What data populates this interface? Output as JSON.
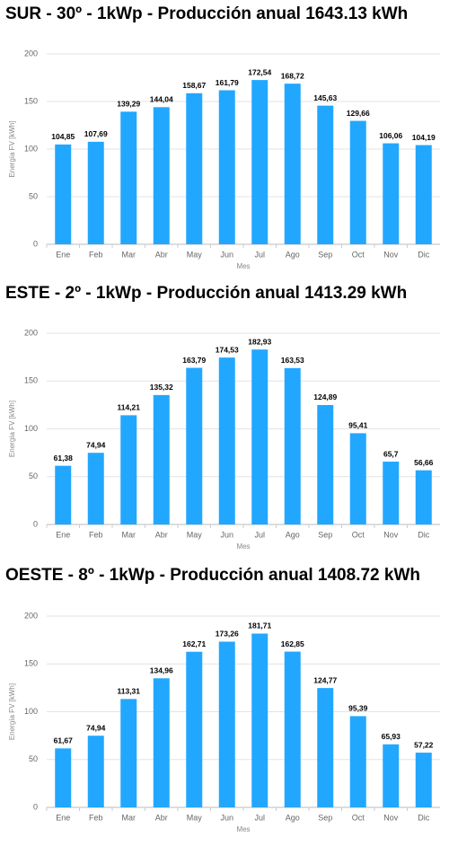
{
  "chart_data": [
    {
      "type": "bar",
      "title": "SUR - 30º - 1kWp - Producción anual 1643.13 kWh",
      "x_label": "Mes",
      "y_label": "Energía FV [kWh]",
      "categories": [
        "Ene",
        "Feb",
        "Mar",
        "Abr",
        "May",
        "Jun",
        "Jul",
        "Ago",
        "Sep",
        "Oct",
        "Nov",
        "Dic"
      ],
      "values": [
        104.85,
        107.69,
        139.29,
        144.04,
        158.67,
        161.79,
        172.54,
        168.72,
        145.63,
        129.66,
        106.06,
        104.19
      ],
      "value_labels": [
        "104,85",
        "107,69",
        "139,29",
        "144,04",
        "158,67",
        "161,79",
        "172,54",
        "168,72",
        "145,63",
        "129,66",
        "106,06",
        "104,19"
      ],
      "color": "#22a7ff",
      "ylim": [
        0,
        200
      ],
      "yticks": [
        0,
        50,
        100,
        150,
        200
      ],
      "grid": true
    },
    {
      "type": "bar",
      "title": "ESTE - 2º - 1kWp - Producción anual 1413.29 kWh",
      "x_label": "Mes",
      "y_label": "Energía FV [kWh]",
      "categories": [
        "Ene",
        "Feb",
        "Mar",
        "Abr",
        "May",
        "Jun",
        "Jul",
        "Ago",
        "Sep",
        "Oct",
        "Nov",
        "Dic"
      ],
      "values": [
        61.38,
        74.94,
        114.21,
        135.32,
        163.79,
        174.53,
        182.93,
        163.53,
        124.89,
        95.41,
        65.7,
        56.66
      ],
      "value_labels": [
        "61,38",
        "74,94",
        "114,21",
        "135,32",
        "163,79",
        "174,53",
        "182,93",
        "163,53",
        "124,89",
        "95,41",
        "65,7",
        "56,66"
      ],
      "color": "#22a7ff",
      "ylim": [
        0,
        200
      ],
      "yticks": [
        0,
        50,
        100,
        150,
        200
      ],
      "grid": true
    },
    {
      "type": "bar",
      "title": "OESTE - 8º - 1kWp - Producción anual 1408.72 kWh",
      "x_label": "Mes",
      "y_label": "Energía FV [kWh]",
      "categories": [
        "Ene",
        "Feb",
        "Mar",
        "Abr",
        "May",
        "Jun",
        "Jul",
        "Ago",
        "Sep",
        "Oct",
        "Nov",
        "Dic"
      ],
      "values": [
        61.67,
        74.94,
        113.31,
        134.96,
        162.71,
        173.26,
        181.71,
        162.85,
        124.77,
        95.39,
        65.93,
        57.22
      ],
      "value_labels": [
        "61,67",
        "74,94",
        "113,31",
        "134,96",
        "162,71",
        "173,26",
        "181,71",
        "162,85",
        "124,77",
        "95,39",
        "65,93",
        "57,22"
      ],
      "color": "#22a7ff",
      "ylim": [
        0,
        200
      ],
      "yticks": [
        0,
        50,
        100,
        150,
        200
      ],
      "grid": true
    }
  ]
}
